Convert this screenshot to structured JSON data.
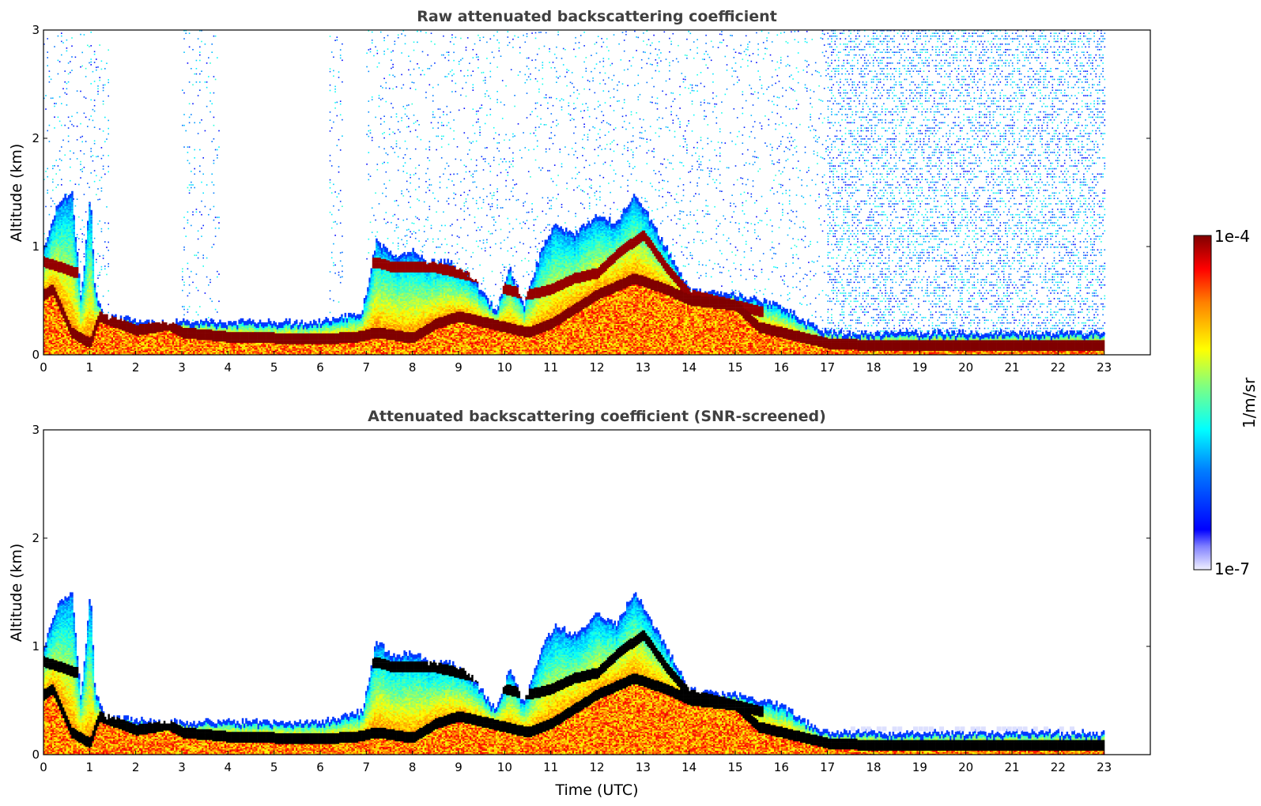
{
  "colormap": "jet",
  "colorbar": {
    "max_label": "1e-4",
    "min_label": "1e-7",
    "unit_label": "1/m/sr"
  },
  "chart_data": [
    {
      "type": "heatmap",
      "title": "Raw attenuated backscattering coefficient",
      "ylabel": "Altitude (km)",
      "xlabel": "",
      "xlim": [
        0,
        24
      ],
      "ylim": [
        0,
        3
      ],
      "x_ticks": [
        "0",
        "1",
        "2",
        "3",
        "4",
        "5",
        "6",
        "7",
        "8",
        "9",
        "10",
        "11",
        "12",
        "13",
        "14",
        "15",
        "16",
        "17",
        "18",
        "19",
        "20",
        "21",
        "22",
        "23"
      ],
      "y_ticks": [
        "0",
        "1",
        "2",
        "3"
      ],
      "data_end_time": 23,
      "scale": "log",
      "noise_regions": [
        [
          0,
          1.4
        ],
        [
          3,
          3.8
        ],
        [
          6.2,
          6.5
        ],
        [
          7,
          17
        ],
        [
          17,
          23
        ]
      ],
      "layers": [
        {
          "name": "boundary layer top",
          "x": [
            0,
            0.2,
            0.6,
            1.0,
            1.2,
            2.0,
            2.7,
            3.0,
            4.0,
            5.0,
            6.0,
            6.8,
            7.2,
            8.0,
            8.5,
            9.0,
            9.5,
            10.0,
            10.5,
            11.0,
            12.0,
            12.8,
            13.5,
            14.0,
            15.0,
            15.5,
            16.0,
            16.5,
            17.0,
            18.0,
            20.0,
            22.0,
            23.0
          ],
          "y": [
            0.55,
            0.6,
            0.2,
            0.1,
            0.35,
            0.22,
            0.27,
            0.2,
            0.16,
            0.15,
            0.14,
            0.16,
            0.2,
            0.15,
            0.28,
            0.35,
            0.3,
            0.25,
            0.2,
            0.28,
            0.55,
            0.7,
            0.6,
            0.5,
            0.45,
            0.25,
            0.2,
            0.15,
            0.1,
            0.08,
            0.08,
            0.08,
            0.08
          ]
        },
        {
          "name": "residual/aerosol layer",
          "x": [
            0,
            0.4,
            0.7,
            7.2,
            7.6,
            8.0,
            8.5,
            9.0,
            9.5,
            10.0,
            10.5,
            11.0,
            11.5,
            12.0,
            12.5,
            13.0,
            13.5,
            14.0,
            14.5,
            15.0,
            15.5
          ],
          "y": [
            0.85,
            0.8,
            0.75,
            0.85,
            0.8,
            0.8,
            0.8,
            0.75,
            0.7,
            0.6,
            0.55,
            0.6,
            0.7,
            0.75,
            0.95,
            1.1,
            0.8,
            0.55,
            0.5,
            0.45,
            0.4
          ]
        }
      ]
    },
    {
      "type": "heatmap",
      "title": "Attenuated backscattering coefficient (SNR-screened)",
      "ylabel": "Altitude (km)",
      "xlabel": "Time (UTC)",
      "xlim": [
        0,
        24
      ],
      "ylim": [
        0,
        3
      ],
      "x_ticks": [
        "0",
        "1",
        "2",
        "3",
        "4",
        "5",
        "6",
        "7",
        "8",
        "9",
        "10",
        "11",
        "12",
        "13",
        "14",
        "15",
        "16",
        "17",
        "18",
        "19",
        "20",
        "21",
        "22",
        "23"
      ],
      "y_ticks": [
        "0",
        "1",
        "2",
        "3"
      ],
      "data_end_time": 23,
      "scale": "log",
      "saturated_color": "#000000"
    }
  ]
}
